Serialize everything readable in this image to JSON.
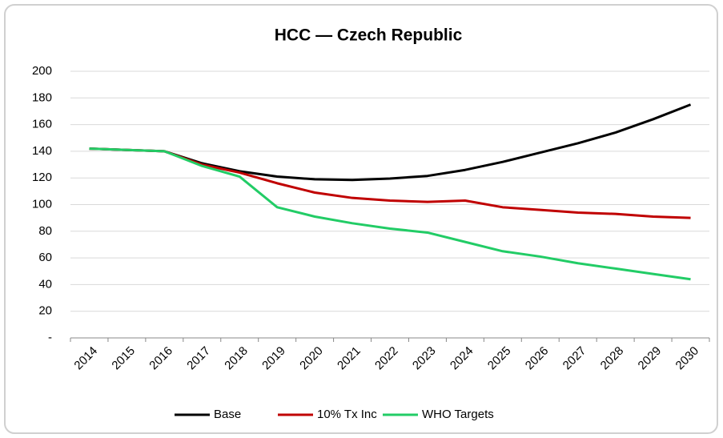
{
  "chart_data": {
    "type": "line",
    "title": "HCC — Czech Republic",
    "categories": [
      "2014",
      "2015",
      "2016",
      "2017",
      "2018",
      "2019",
      "2020",
      "2021",
      "2022",
      "2023",
      "2024",
      "2025",
      "2026",
      "2027",
      "2028",
      "2029",
      "2030"
    ],
    "series": [
      {
        "name": "Base",
        "color": "#000000",
        "values": [
          142,
          141,
          140,
          131,
          125,
          121,
          119,
          118.5,
          119.5,
          121.5,
          126,
          132,
          139,
          146,
          154,
          164,
          175
        ]
      },
      {
        "name": "10% Tx Inc",
        "color": "#c00000",
        "values": [
          142,
          141,
          140,
          130,
          124,
          116,
          109,
          105,
          103,
          102,
          103,
          98,
          96,
          94,
          93,
          91,
          90
        ]
      },
      {
        "name": "WHO Targets",
        "color": "#22cc66",
        "values": [
          142,
          141,
          140,
          129,
          121,
          98,
          91,
          86,
          82,
          79,
          72,
          65,
          61,
          56,
          52,
          48,
          44
        ]
      }
    ],
    "ylim": [
      0,
      200
    ],
    "yticks": [
      {
        "value": 0,
        "label": "-"
      },
      20,
      40,
      60,
      80,
      100,
      120,
      140,
      160,
      180,
      200
    ],
    "grid": true,
    "legend": "bottom"
  }
}
